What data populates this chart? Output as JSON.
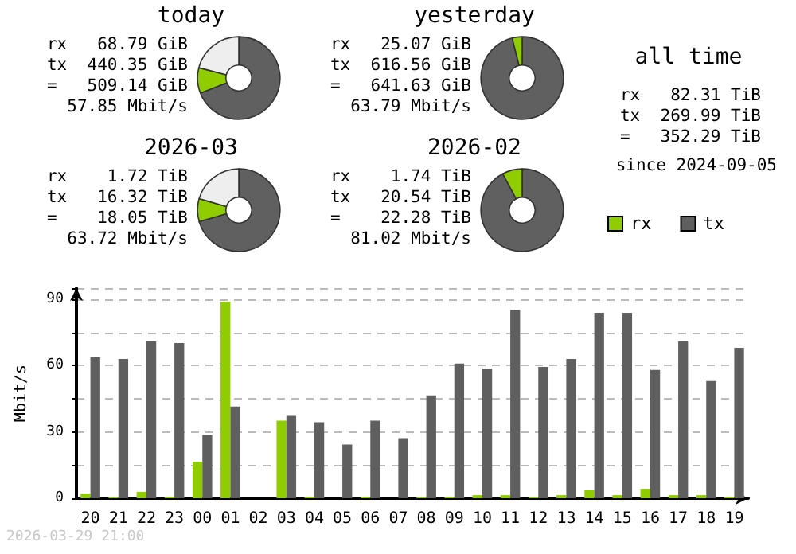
{
  "chart_data": [
    {
      "type": "donut",
      "title": "today",
      "categories": [
        null,
        null,
        null
      ],
      "values": [
        69,
        10,
        21
      ],
      "colors": [
        "#606060",
        "#8fcc00",
        "#eeeeee"
      ],
      "annotations": [
        "rx   68.79 GiB",
        "tx  440.35 GiB",
        "=   509.14 GiB",
        "57.85 Mbit/s"
      ]
    },
    {
      "type": "donut",
      "title": "yesterday",
      "categories": [
        null,
        null
      ],
      "values": [
        96.1,
        3.9
      ],
      "colors": [
        "#606060",
        "#8fcc00"
      ],
      "annotations": [
        "rx   25.07 GiB",
        "tx  616.56 GiB",
        "=   641.63 GiB",
        "63.79 Mbit/s"
      ]
    },
    {
      "type": "other",
      "title": "all time",
      "annotations": [
        "rx   82.31 TiB",
        "tx  269.99 TiB",
        "=   352.29 TiB",
        "since 2024-09-05"
      ]
    },
    {
      "type": "donut",
      "title": "2026-03",
      "categories": [
        null,
        null,
        null
      ],
      "values": [
        70.5,
        9,
        20.5
      ],
      "colors": [
        "#606060",
        "#8fcc00",
        "#eeeeee"
      ],
      "annotations": [
        "rx    1.72 TiB",
        "tx   16.32 TiB",
        "=    18.05 TiB",
        "63.72 Mbit/s"
      ]
    },
    {
      "type": "donut",
      "title": "2026-02",
      "categories": [
        null,
        null
      ],
      "values": [
        92.2,
        7.8
      ],
      "colors": [
        "#606060",
        "#8fcc00"
      ],
      "annotations": [
        "rx    1.74 TiB",
        "tx   20.54 TiB",
        "=    22.28 TiB",
        "81.02 Mbit/s"
      ]
    },
    {
      "type": "bar",
      "categories": [
        "20",
        "21",
        "22",
        "23",
        "00",
        "01",
        "02",
        "03",
        "04",
        "05",
        "06",
        "07",
        "08",
        "09",
        "10",
        "11",
        "12",
        "13",
        "14",
        "15",
        "16",
        "17",
        "18",
        "19"
      ],
      "series": [
        {
          "name": "rx",
          "color": "#8fcc00",
          "values": [
            2.1,
            0.7,
            2.9,
            0.7,
            16.5,
            88.8,
            null,
            35.1,
            0.7,
            0,
            0.7,
            0,
            0.7,
            0.7,
            1.4,
            1.4,
            0.7,
            1.4,
            3.6,
            1.4,
            4.3,
            1.4,
            1.4,
            0.7
          ]
        },
        {
          "name": "tx",
          "color": "#5f5f5f",
          "values": [
            63.7,
            63,
            70.9,
            70.2,
            28.6,
            41.5,
            null,
            37.2,
            34.4,
            24.3,
            35.1,
            27.2,
            46.5,
            60.9,
            58.7,
            85.2,
            59.4,
            63,
            83.8,
            83.8,
            58,
            70.9,
            53,
            68
          ]
        }
      ],
      "ylabel": "Mbit/s",
      "ylim": [
        0,
        95
      ],
      "yticks": [
        0,
        {
          "value": 15,
          "label": null
        },
        30,
        {
          "value": 45,
          "label": null
        },
        60,
        {
          "value": 75,
          "label": null
        },
        90
      ],
      "grid": "y",
      "legend": "top right",
      "annotations": [
        "2026-03-29 21:00"
      ]
    }
  ]
}
